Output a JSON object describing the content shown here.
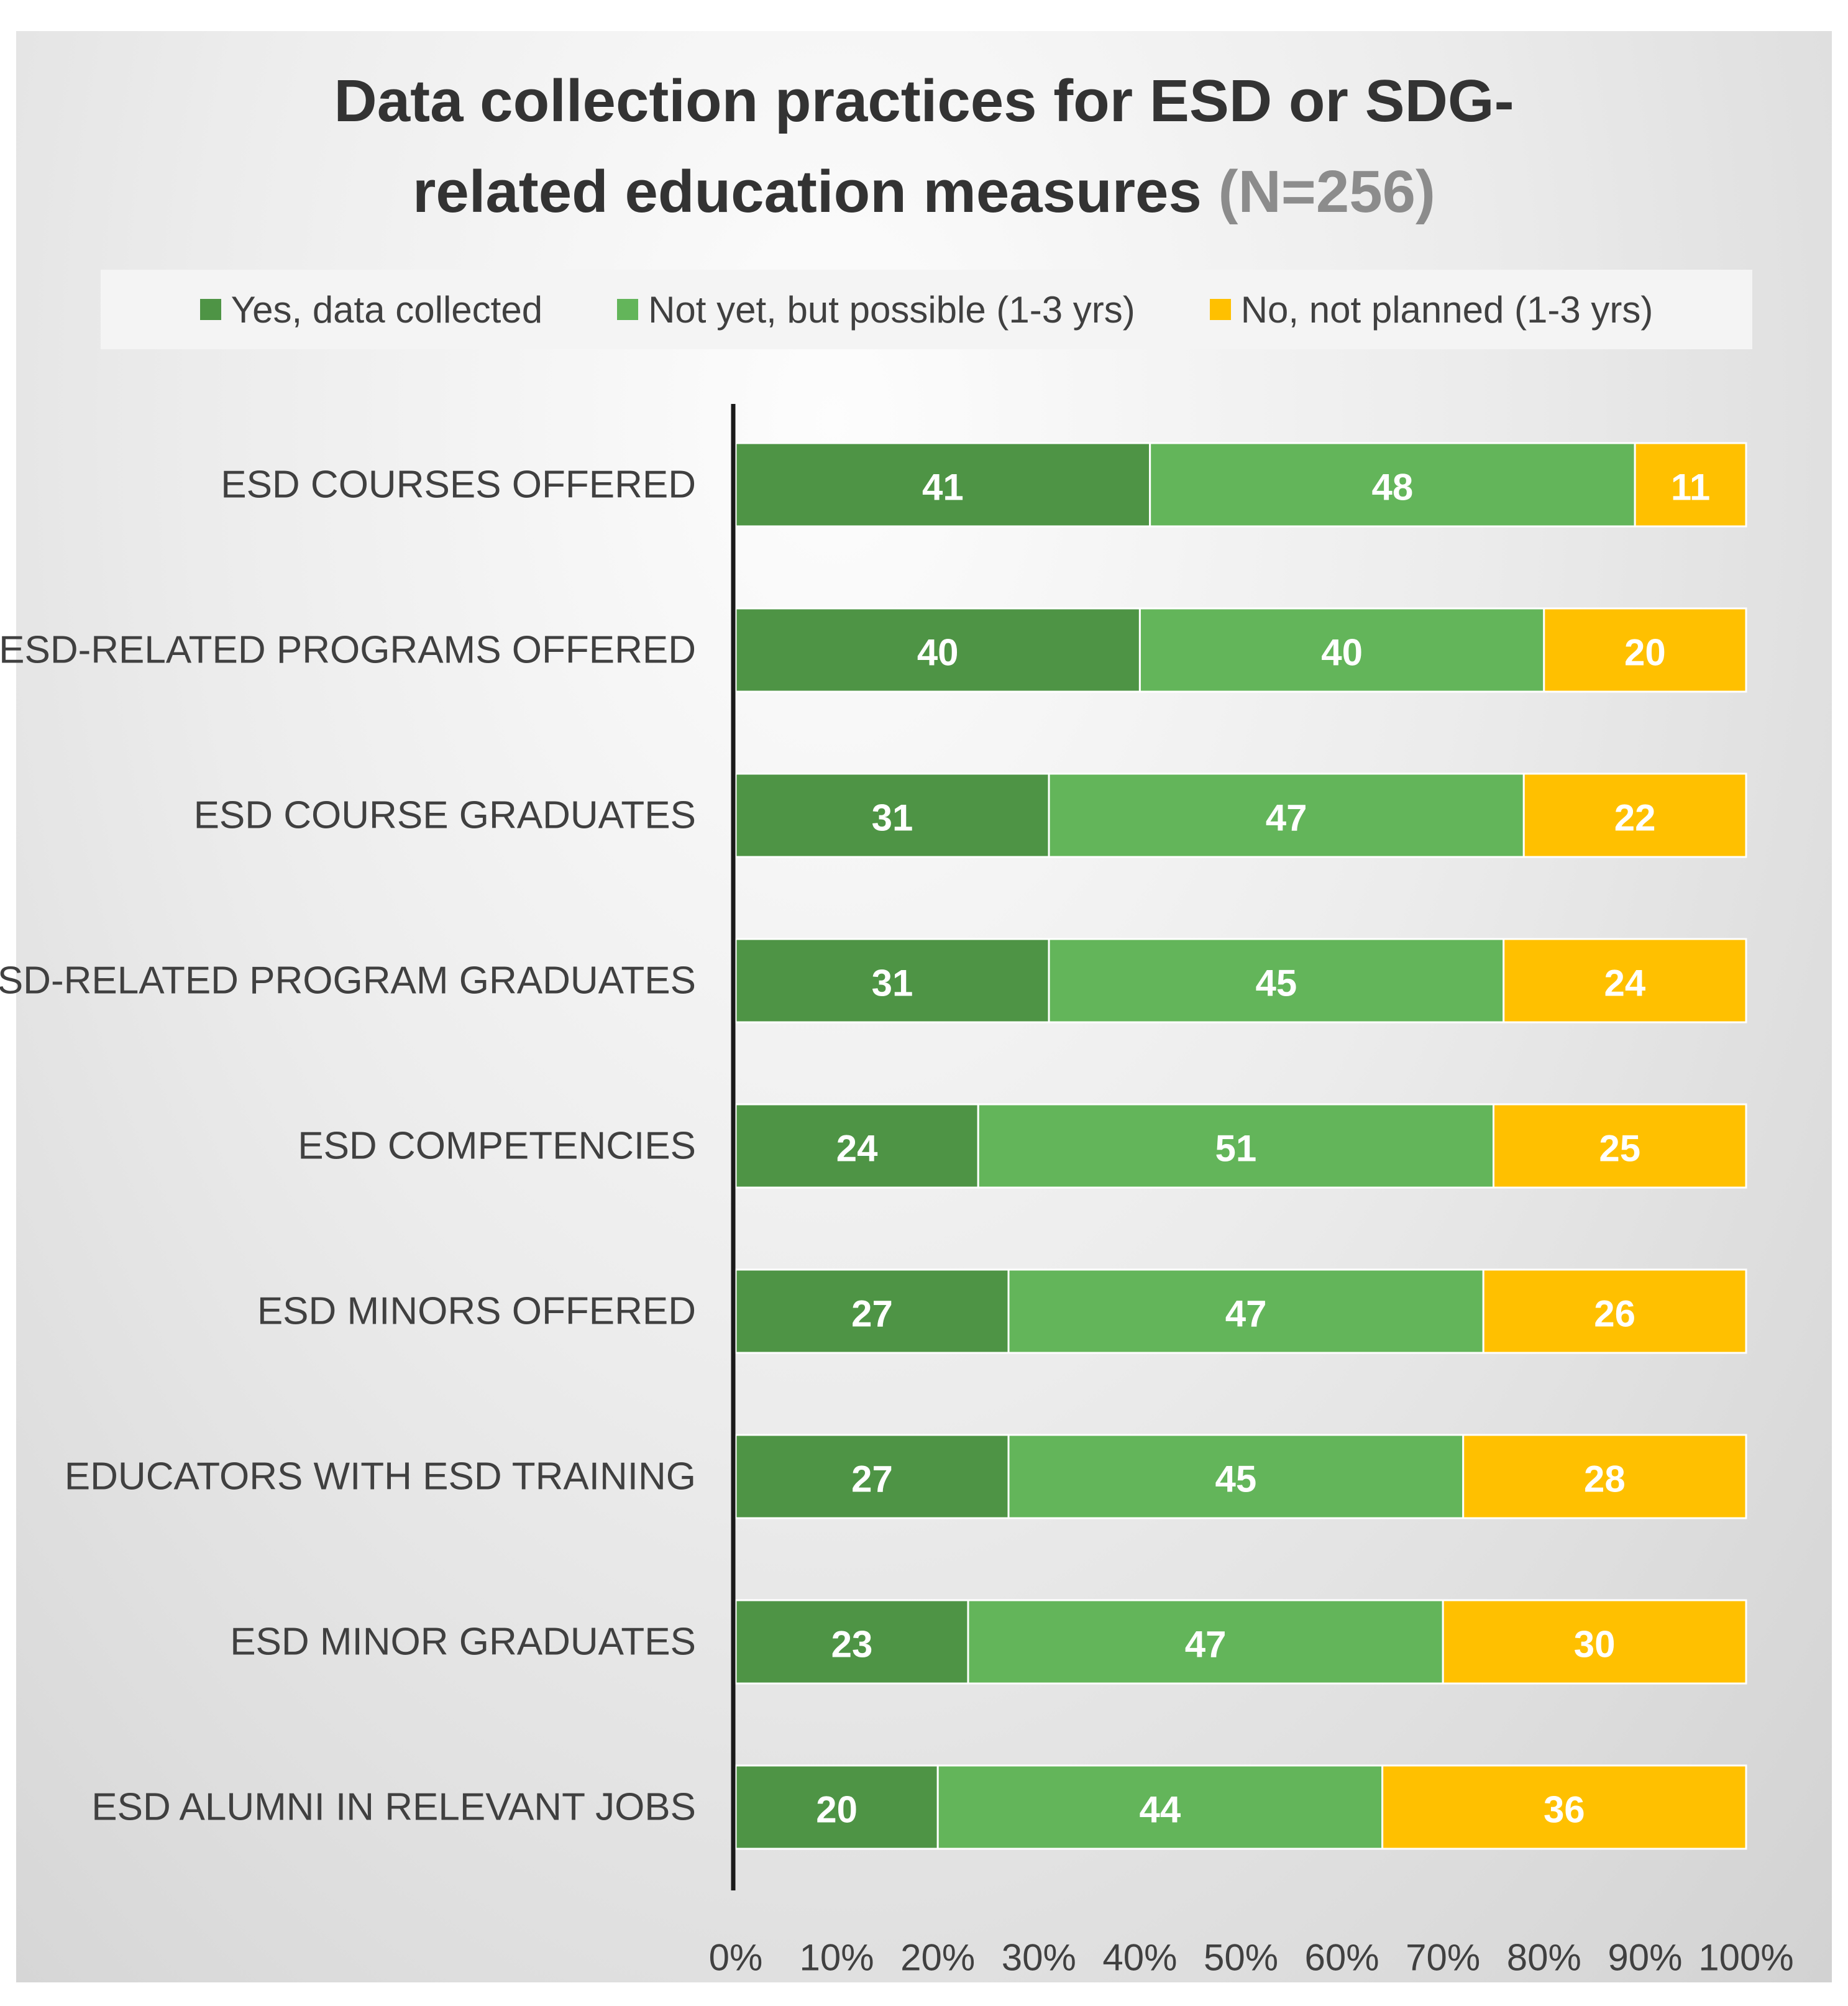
{
  "chart_data": {
    "type": "bar",
    "orientation": "horizontal",
    "stacked": true,
    "title_line1": "Data collection practices for ESD or SDG-",
    "title_line2": "related education measures",
    "title_n": "(N=256)",
    "categories": [
      "ESD COURSES OFFERED",
      "ESD-RELATED PROGRAMS OFFERED",
      "ESD COURSE GRADUATES",
      "ESD-RELATED PROGRAM GRADUATES",
      "ESD COMPETENCIES",
      "ESD MINORS OFFERED",
      "EDUCATORS WITH ESD TRAINING",
      "ESD MINOR GRADUATES",
      "ESD ALUMNI IN RELEVANT JOBS"
    ],
    "series": [
      {
        "name": "Yes, data collected",
        "color": "#4e9445",
        "values": [
          41,
          40,
          31,
          31,
          24,
          27,
          27,
          23,
          20
        ]
      },
      {
        "name": "Not yet, but possible (1-3 yrs)",
        "color": "#63b55a",
        "values": [
          48,
          40,
          47,
          45,
          51,
          47,
          45,
          47,
          44
        ]
      },
      {
        "name": "No, not planned (1-3 yrs)",
        "color": "#ffc000",
        "values": [
          11,
          20,
          22,
          24,
          25,
          26,
          28,
          30,
          36
        ]
      }
    ],
    "xticks": [
      "0%",
      "10%",
      "20%",
      "30%",
      "40%",
      "50%",
      "60%",
      "70%",
      "80%",
      "90%",
      "100%"
    ],
    "xlim": [
      0,
      100
    ],
    "grid": false,
    "legend_position": "top",
    "axis_color": "#1a1a1a"
  }
}
